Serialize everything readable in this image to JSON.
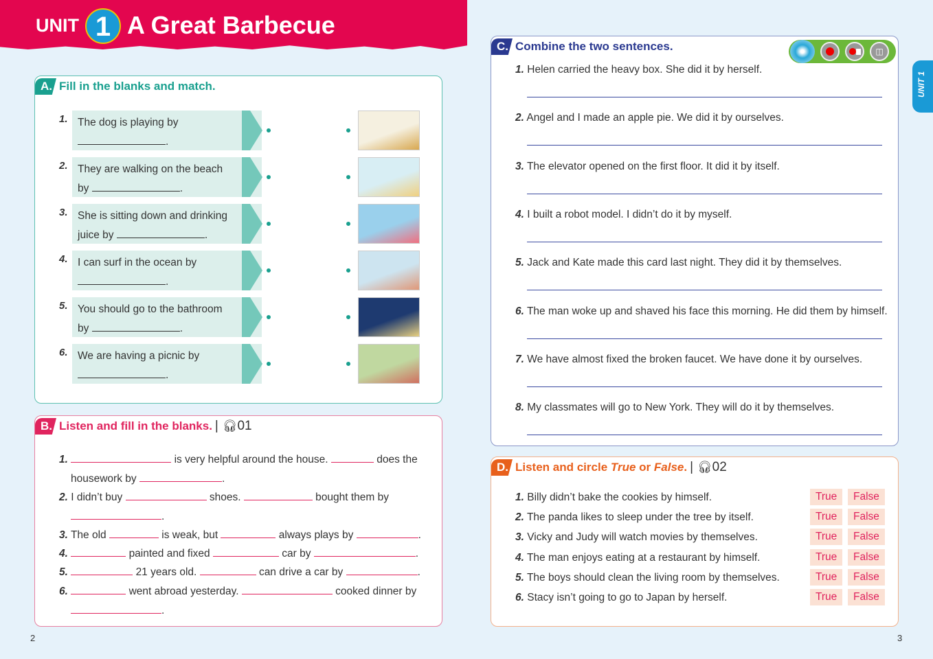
{
  "header": {
    "unit": "UNIT",
    "unit_number": "1",
    "title": "A Great Barbecue"
  },
  "side_tab": "UNIT 1",
  "colors": {
    "banner": "#e3064f",
    "teal": "#1aa08f",
    "pink": "#e0245e",
    "navy": "#2a3990",
    "orange": "#e8601c",
    "background": "#e6f2fa"
  },
  "sectionA": {
    "tag": "A.",
    "title": "Fill in the blanks and match.",
    "items": [
      {
        "num": "1.",
        "text1": "The dog is playing by",
        "text2": "",
        "end": ".",
        "picture": "dog"
      },
      {
        "num": "2.",
        "text1": "They are walking on the beach",
        "text2": "by",
        "end": ".",
        "picture": "girl in bathroom"
      },
      {
        "num": "3.",
        "text1": "She is sitting down and drinking",
        "text2": "juice by",
        "end": ".",
        "picture": "boy surfing"
      },
      {
        "num": "4.",
        "text1": "I can surf in the ocean by",
        "text2": "",
        "end": ".",
        "picture": "girl at beach"
      },
      {
        "num": "5.",
        "text1": "You should go to the bathroom",
        "text2": "by",
        "end": ".",
        "picture": "couple at night beach"
      },
      {
        "num": "6.",
        "text1": "We are having a picnic by",
        "text2": "",
        "end": ".",
        "picture": "family picnic"
      }
    ]
  },
  "sectionB": {
    "tag": "B.",
    "title": "Listen and fill in the blanks.",
    "track": "01",
    "lines": [
      [
        "1.",
        "is very helpful around the house.",
        "does the"
      ],
      [
        "housework by",
        "."
      ],
      [
        "2.",
        "I didn’t buy",
        "shoes.",
        "bought them by"
      ],
      [
        "."
      ],
      [
        "3.",
        "The old",
        "is weak, but",
        "always plays by",
        "."
      ],
      [
        "4.",
        "painted and fixed",
        "car by",
        "."
      ],
      [
        "5.",
        "21 years old.",
        "can drive a car by",
        "."
      ],
      [
        "6.",
        "went abroad yesterday.",
        "cooked dinner by"
      ],
      [
        "."
      ]
    ]
  },
  "sectionC": {
    "tag": "C.",
    "title": "Combine the two sentences.",
    "tools": [
      "pen-icon",
      "record-icon",
      "stop-record-icon",
      "listen-icon"
    ],
    "items": [
      {
        "num": "1.",
        "text": "Helen carried the heavy box. She did it by herself."
      },
      {
        "num": "2.",
        "text": "Angel and I made an apple pie. We did it by ourselves."
      },
      {
        "num": "3.",
        "text": "The elevator opened on the first floor. It did it by itself."
      },
      {
        "num": "4.",
        "text": "I built a robot model. I didn’t do it by myself."
      },
      {
        "num": "5.",
        "text": "Jack and Kate made this card last night. They did it by themselves."
      },
      {
        "num": "6.",
        "text": "The man woke up and shaved his face this morning. He did them by himself."
      },
      {
        "num": "7.",
        "text": "We have almost fixed the broken faucet. We have done it by ourselves."
      },
      {
        "num": "8.",
        "text": "My classmates will go to New York. They will do it by themselves."
      }
    ]
  },
  "sectionD": {
    "tag": "D.",
    "title_pre": "Listen and circle ",
    "true_word": "True",
    "or": " or ",
    "false_word": "False",
    "title_end": ".",
    "track": "02",
    "true_label": "True",
    "false_label": "False",
    "items": [
      {
        "num": "1.",
        "text": "Billy didn’t bake the cookies by himself."
      },
      {
        "num": "2.",
        "text": "The panda likes to sleep under the tree by itself."
      },
      {
        "num": "3.",
        "text": "Vicky and Judy will watch movies by themselves."
      },
      {
        "num": "4.",
        "text": "The man enjoys eating at a restaurant by himself."
      },
      {
        "num": "5.",
        "text": "The boys should clean the living room by themselves."
      },
      {
        "num": "6.",
        "text": "Stacy isn’t going to go to Japan by herself."
      }
    ]
  },
  "pages": {
    "left": "2",
    "right": "3"
  }
}
